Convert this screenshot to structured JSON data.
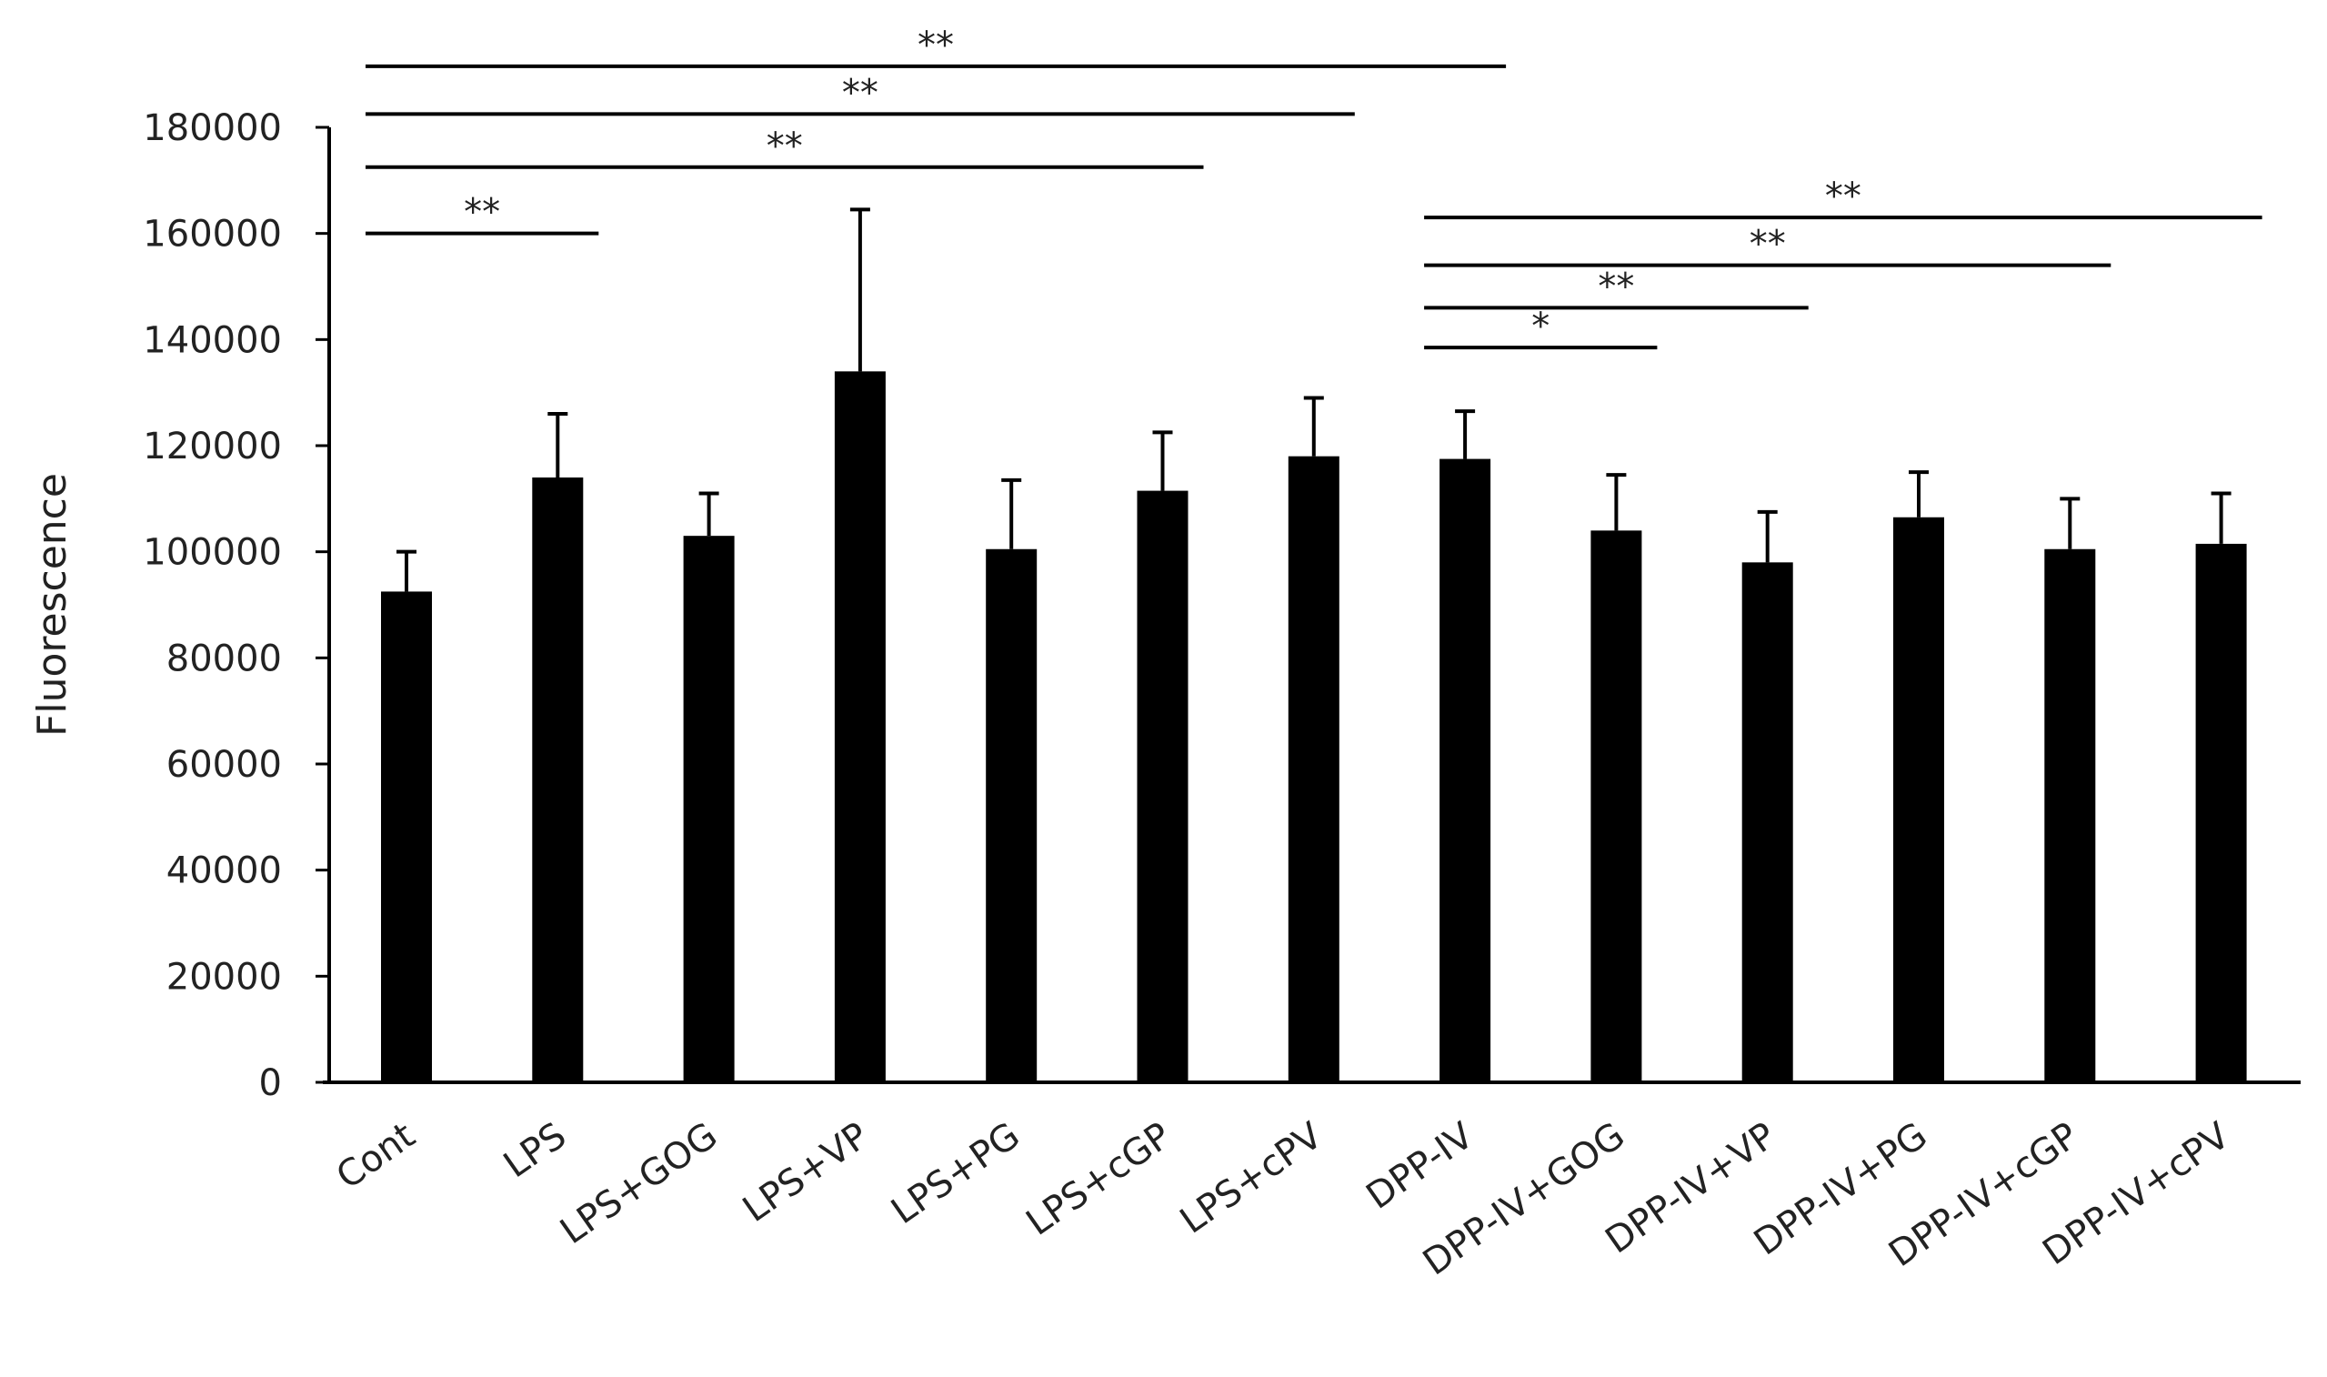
{
  "chart_data": {
    "type": "bar",
    "title": "",
    "xlabel": "",
    "ylabel": "Fluorescence",
    "ylim": [
      0,
      180000
    ],
    "yticks": [
      0,
      20000,
      40000,
      60000,
      80000,
      100000,
      120000,
      140000,
      160000,
      180000
    ],
    "grid": false,
    "legend": "none",
    "bar_color": "#000000",
    "categories": [
      "Cont",
      "LPS",
      "LPS+GOG",
      "LPS+VP",
      "LPS+PG",
      "LPS+cGP",
      "LPS+cPV",
      "DPP-IV",
      "DPP-IV+GOG",
      "DPP-IV+VP",
      "DPP-IV+PG",
      "DPP-IV+cGP",
      "DPP-IV+cPV"
    ],
    "values": [
      92500,
      114000,
      103000,
      134000,
      100500,
      111500,
      118000,
      117500,
      104000,
      98000,
      106500,
      100500,
      101500
    ],
    "errors": [
      7500,
      12000,
      8000,
      30500,
      13000,
      11000,
      11000,
      9000,
      10500,
      9500,
      8500,
      9500,
      9500
    ],
    "significance": [
      {
        "from": "Cont",
        "to": "LPS",
        "label": "**",
        "level": 160000
      },
      {
        "from": "Cont",
        "to": "LPS+cGP",
        "label": "**",
        "level": 172500
      },
      {
        "from": "Cont",
        "to": "LPS+cPV",
        "label": "**",
        "level": 182500
      },
      {
        "from": "Cont",
        "to": "DPP-IV",
        "label": "**",
        "level": 191500
      },
      {
        "from": "DPP-IV",
        "to": "DPP-IV+GOG",
        "label": "*",
        "level": 138500
      },
      {
        "from": "DPP-IV",
        "to": "DPP-IV+VP",
        "label": "**",
        "level": 146000
      },
      {
        "from": "DPP-IV",
        "to": "DPP-IV+cGP",
        "label": "**",
        "level": 154000
      },
      {
        "from": "DPP-IV",
        "to": "DPP-IV+cPV",
        "label": "**",
        "level": 163000
      }
    ]
  }
}
